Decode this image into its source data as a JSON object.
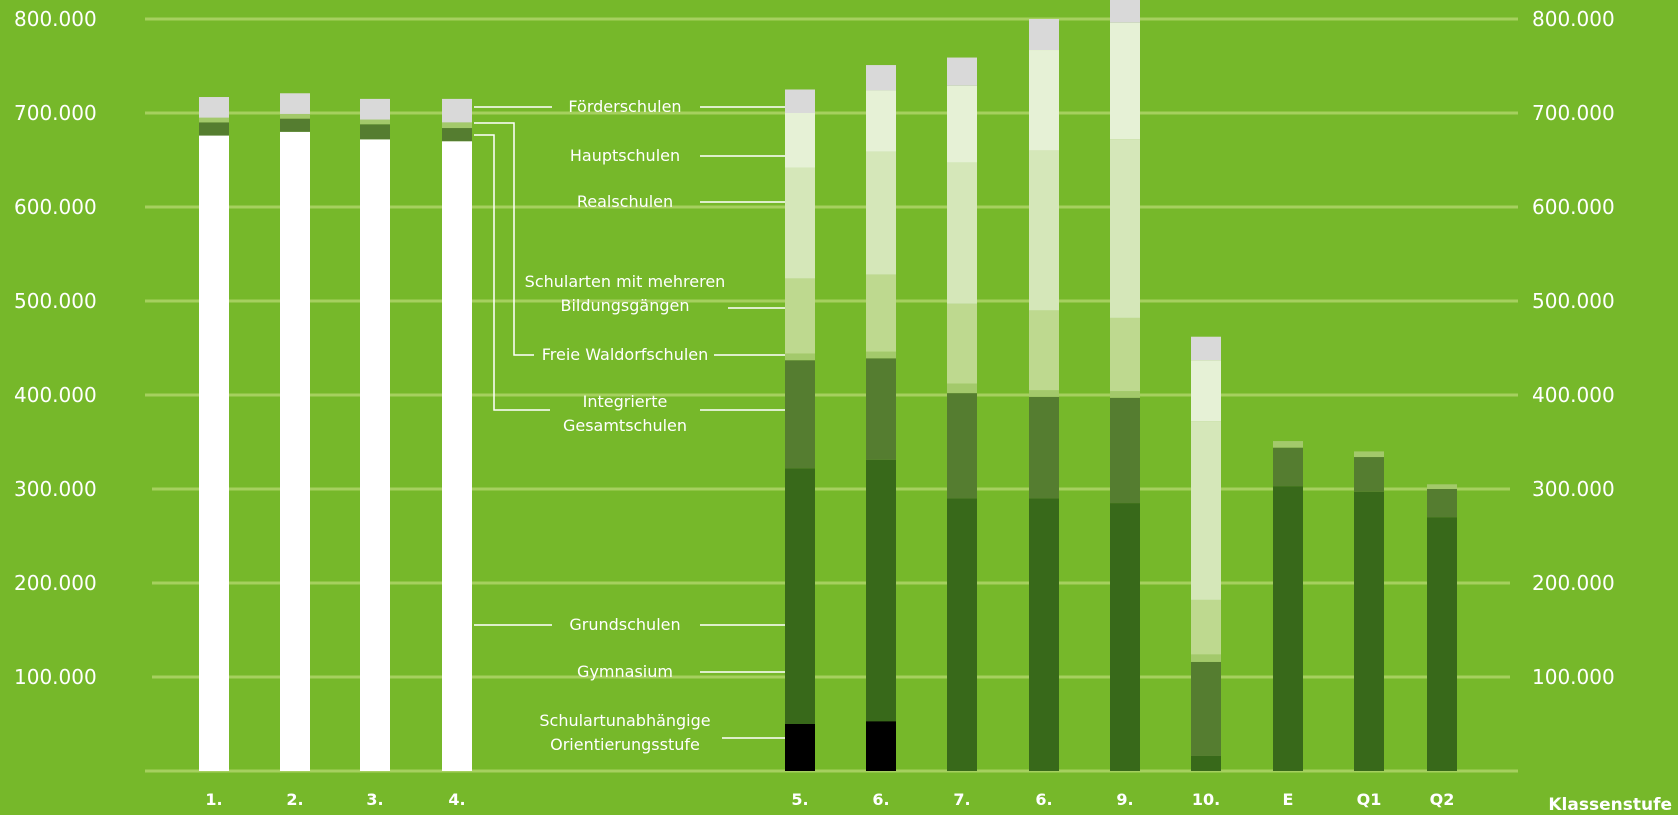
{
  "chart_data": {
    "type": "bar",
    "stacked": true,
    "xlabel": "Klassenstufe",
    "ylabel": "",
    "ylim": [
      0,
      800000
    ],
    "yticks": [
      100000,
      200000,
      300000,
      400000,
      500000,
      600000,
      700000,
      800000
    ],
    "ytick_labels": [
      "100.000",
      "200.000",
      "300.000",
      "400.000",
      "500.000",
      "600.000",
      "700.000",
      "800.000"
    ],
    "grid": true,
    "categories": [
      "1.",
      "2.",
      "3.",
      "4.",
      "5.",
      "6.",
      "7.",
      "6.",
      "9.",
      "10.",
      "E",
      "Q1",
      "Q2"
    ],
    "series": [
      {
        "name": "Schulartunabhängige Orientierungsstufe",
        "color": "#000000",
        "values": [
          0,
          0,
          0,
          0,
          50000,
          53000,
          0,
          0,
          0,
          0,
          0,
          0,
          0
        ]
      },
      {
        "name": "Grundschulen",
        "color": "#ffffff",
        "values": [
          676000,
          680000,
          672000,
          670000,
          0,
          0,
          0,
          0,
          0,
          0,
          0,
          0,
          0
        ]
      },
      {
        "name": "Gymnasium",
        "color": "#38691a",
        "values": [
          0,
          0,
          0,
          0,
          272000,
          278000,
          290000,
          290000,
          285000,
          16000,
          303000,
          297000,
          270000
        ]
      },
      {
        "name": "Integrierte Gesamtschulen",
        "color": "#557d30",
        "values": [
          14000,
          14000,
          16000,
          14000,
          115000,
          108000,
          112000,
          108000,
          112000,
          100000,
          41000,
          37000,
          30000
        ]
      },
      {
        "name": "Freie Waldorfschulen",
        "color": "#a3c96b",
        "values": [
          5000,
          5000,
          5000,
          6000,
          7000,
          7000,
          10000,
          7000,
          7000,
          8000,
          7000,
          6000,
          5000
        ]
      },
      {
        "name": "Schularten mit mehreren Bildungsgängen",
        "color": "#bed98f",
        "values": [
          0,
          0,
          0,
          0,
          80000,
          82000,
          85000,
          85000,
          78000,
          58000,
          0,
          0,
          0
        ]
      },
      {
        "name": "Realschulen",
        "color": "#d5e7b9",
        "values": [
          0,
          0,
          0,
          0,
          118000,
          131000,
          150000,
          170000,
          190000,
          190000,
          0,
          0,
          0
        ]
      },
      {
        "name": "Hauptschulen",
        "color": "#e6f1d6",
        "values": [
          0,
          0,
          0,
          0,
          58000,
          65000,
          82000,
          107000,
          124000,
          65000,
          0,
          0,
          0
        ]
      },
      {
        "name": "Förderschulen",
        "color": "#d9d9d9",
        "values": [
          22000,
          22000,
          22000,
          25000,
          25000,
          27000,
          30000,
          33000,
          27000,
          25000,
          0,
          0,
          0
        ]
      }
    ],
    "legend_labels": [
      {
        "series": "Förderschulen",
        "lines": [
          "Förderschulen"
        ]
      },
      {
        "series": "Hauptschulen",
        "lines": [
          "Hauptschulen"
        ]
      },
      {
        "series": "Realschulen",
        "lines": [
          "Realschulen"
        ]
      },
      {
        "series": "Schularten mit mehreren Bildungsgängen",
        "lines": [
          "Schularten mit mehreren",
          "Bildungsgängen"
        ]
      },
      {
        "series": "Freie Waldorfschulen",
        "lines": [
          "Freie Waldorfschulen"
        ]
      },
      {
        "series": "Integrierte Gesamtschulen",
        "lines": [
          "Integrierte",
          "Gesamtschulen"
        ]
      },
      {
        "series": "Grundschulen",
        "lines": [
          "Grundschulen"
        ]
      },
      {
        "series": "Gymnasium",
        "lines": [
          "Gymnasium"
        ]
      },
      {
        "series": "Schulartunabhängige Orientierungsstufe",
        "lines": [
          "Schulartunabhängige",
          "Orientierungsstufe"
        ]
      }
    ],
    "legend_placement": "between bar groups (callout labels)",
    "background_color": "#76b82a"
  }
}
